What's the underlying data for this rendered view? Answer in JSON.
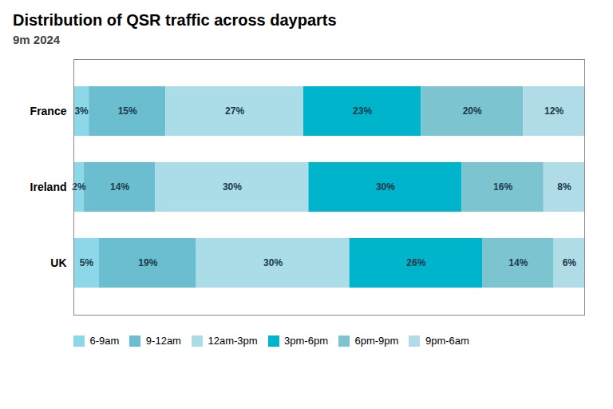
{
  "chart_data": {
    "type": "bar",
    "title": "Distribution of QSR traffic across dayparts",
    "subtitle": "9m 2024",
    "orientation": "horizontal",
    "stacked": true,
    "data_labels": true,
    "categories": [
      "France",
      "Ireland",
      "UK"
    ],
    "series": [
      {
        "name": "6-9am",
        "color": "#8cd8e8",
        "values": [
          3,
          2,
          5
        ],
        "value_labels": [
          "3%",
          "2%",
          "5%"
        ]
      },
      {
        "name": "9-12am",
        "color": "#6bbecf",
        "values": [
          15,
          14,
          19
        ],
        "value_labels": [
          "15%",
          "14%",
          "19%"
        ]
      },
      {
        "name": "12am-3pm",
        "color": "#aadde8",
        "values": [
          27,
          30,
          30
        ],
        "value_labels": [
          "27%",
          "30%",
          "30%"
        ]
      },
      {
        "name": "3pm-6pm",
        "color": "#00b4cc",
        "values": [
          23,
          30,
          26
        ],
        "value_labels": [
          "23%",
          "30%",
          "26%"
        ]
      },
      {
        "name": "6pm-9pm",
        "color": "#7bc4d0",
        "values": [
          20,
          16,
          14
        ],
        "value_labels": [
          "20%",
          "16%",
          "14%"
        ]
      },
      {
        "name": "9pm-6am",
        "color": "#b0dce8",
        "values": [
          12,
          8,
          6
        ],
        "value_labels": [
          "12%",
          "8%",
          "6%"
        ]
      }
    ],
    "xlim": [
      0,
      100
    ],
    "tick_labels": "y",
    "grid": false,
    "legend": "bottom"
  }
}
